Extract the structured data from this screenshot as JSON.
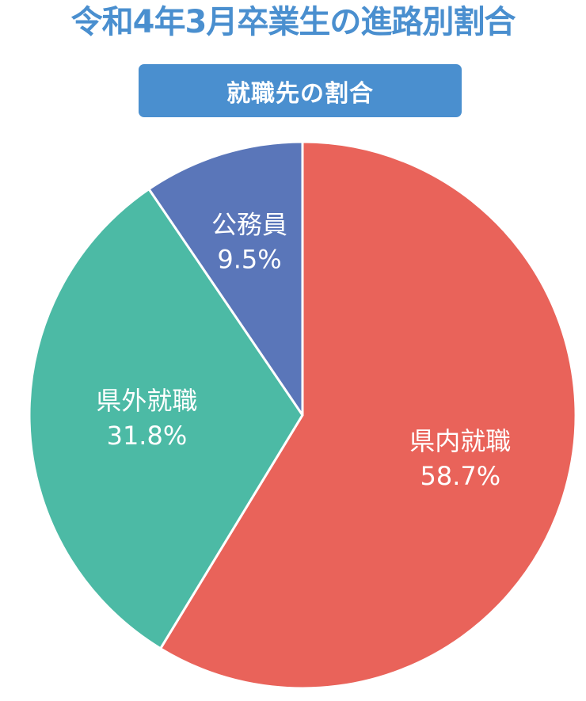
{
  "colors": {
    "title": "#4a8fcf",
    "subtitle_bg": "#4a8fcf",
    "slice_border": "#ffffff"
  },
  "title": "令和4年3月卒業生の進路別割合",
  "subtitle": "就職先の割合",
  "chart_data": {
    "type": "pie",
    "title": "令和4年3月卒業生の進路別割合",
    "subtitle": "就職先の割合",
    "slices": [
      {
        "label": "県内就職",
        "value": 58.7,
        "value_label": "58.7%",
        "color": "#e9635a"
      },
      {
        "label": "県外就職",
        "value": 31.8,
        "value_label": "31.8%",
        "color": "#4cbaa5"
      },
      {
        "label": "公務員",
        "value": 9.5,
        "value_label": "9.5%",
        "color": "#5a76b9"
      }
    ],
    "start": "12 o'clock",
    "direction": "clockwise",
    "legend": "none"
  }
}
